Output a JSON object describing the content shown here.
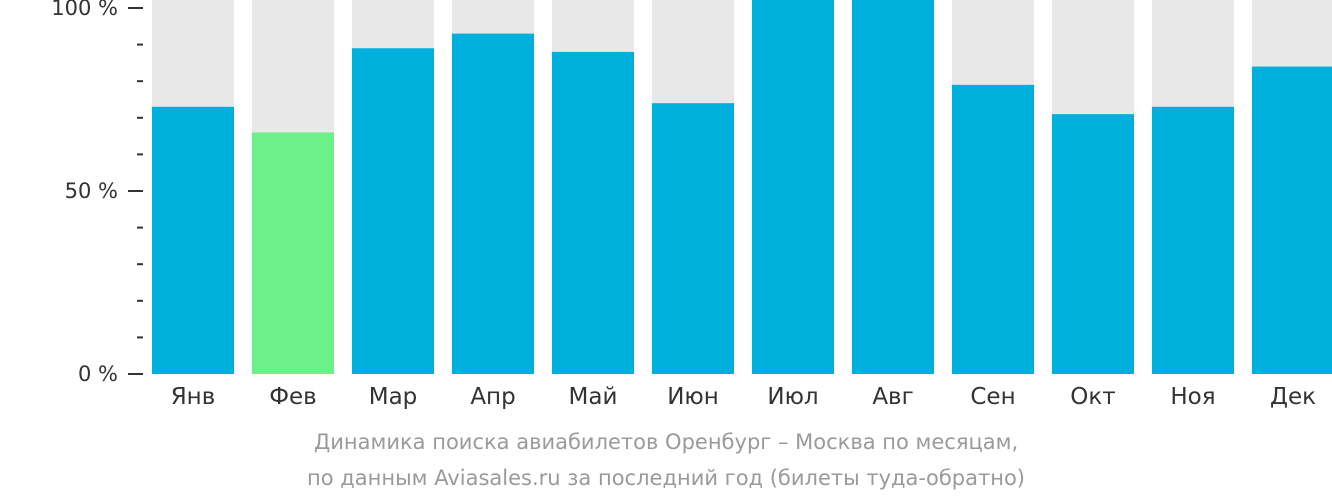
{
  "chart_data": {
    "type": "bar",
    "categories": [
      "Янв",
      "Фев",
      "Мар",
      "Апр",
      "Май",
      "Июн",
      "Июл",
      "Авг",
      "Сен",
      "Окт",
      "Ноя",
      "Дек"
    ],
    "values": [
      73,
      66,
      89,
      93,
      88,
      74,
      103,
      105,
      79,
      71,
      73,
      84
    ],
    "ylim": [
      0,
      100
    ],
    "yticks": [
      {
        "value": 0,
        "label": "0 %"
      },
      {
        "value": 50,
        "label": "50 %"
      },
      {
        "value": 100,
        "label": "100 %"
      }
    ],
    "minor_tick_step": 10,
    "highlight_index": 1,
    "colors": {
      "bar": "#00b0dc",
      "highlight": "#6ef088",
      "background_column": "#e8e8e8",
      "axis": "#333333"
    },
    "caption_line1": "Динамика поиска авиабилетов Оренбург – Москва по месяцам,",
    "caption_line2": "по данным Aviasales.ru за последний год (билеты туда-обратно)"
  }
}
